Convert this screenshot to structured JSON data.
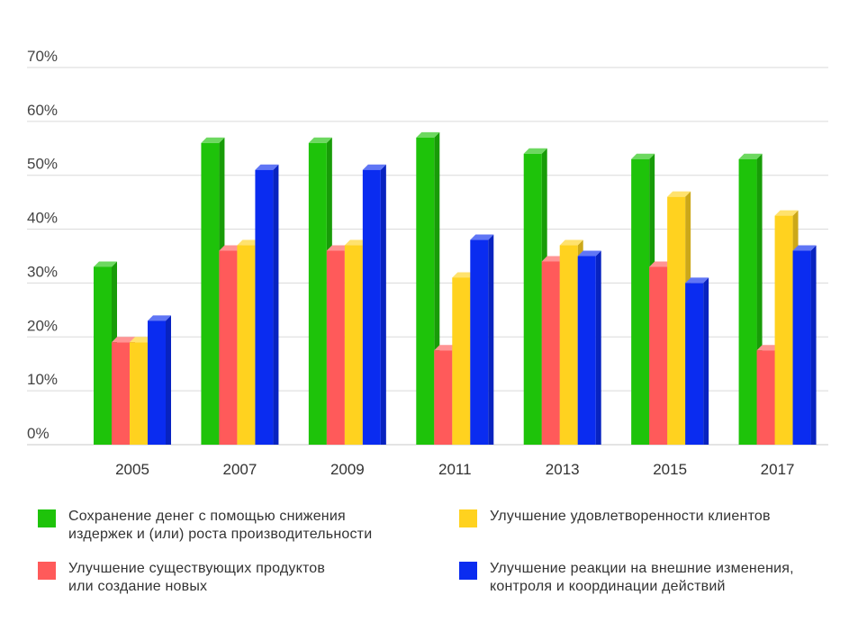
{
  "chart_data": {
    "type": "bar",
    "categories": [
      "2005",
      "2007",
      "2009",
      "2011",
      "2013",
      "2015",
      "2017"
    ],
    "ylim": [
      0,
      70
    ],
    "yticks": [
      "0%",
      "10%",
      "20%",
      "30%",
      "40%",
      "50%",
      "60%",
      "70%"
    ],
    "grid": true,
    "legend_position": "bottom",
    "series": [
      {
        "name": "Сохранение денег с помощью снижения издержек и (или) роста производительности",
        "color": "#1ec30a",
        "values": [
          33,
          56,
          56,
          57,
          54,
          53,
          53
        ]
      },
      {
        "name": "Улучшение существующих продуктов или создание новых",
        "color": "#ff5a5a",
        "values": [
          19,
          36,
          36,
          17.5,
          34,
          33,
          17.5
        ]
      },
      {
        "name": "Улучшение удовлетворенности клиентов",
        "color": "#ffd21f",
        "values": [
          19,
          37,
          37,
          31,
          37,
          46,
          42.5
        ]
      },
      {
        "name": "Улучшение реакции на внешние изменения, контроля и координации действий",
        "color": "#0a2cf0",
        "values": [
          23,
          51,
          51,
          38,
          35,
          30,
          36
        ]
      }
    ]
  },
  "legend": {
    "items": [
      {
        "line1": "Сохранение денег с помощью снижения",
        "line2": "издержек и (или) роста производительности",
        "color": "#1ec30a"
      },
      {
        "line1": "Улучшение существующих продуктов",
        "line2": "или создание новых",
        "color": "#ff5a5a"
      },
      {
        "line1": "Улучшение удовлетворенности клиентов",
        "line2": "",
        "color": "#ffd21f"
      },
      {
        "line1": "Улучшение реакции на внешние изменения,",
        "line2": "контроля и координации действий",
        "color": "#0a2cf0"
      }
    ]
  }
}
